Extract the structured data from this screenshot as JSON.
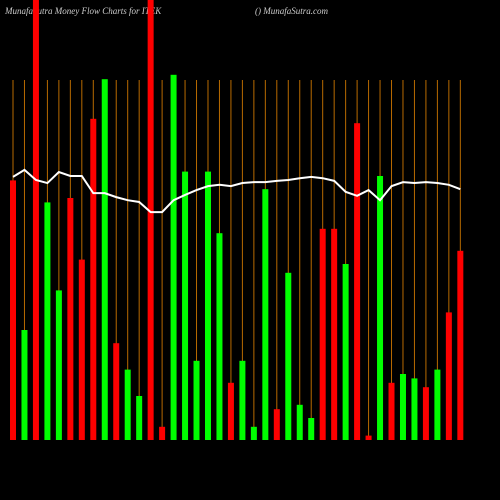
{
  "chart_data": {
    "type": "bar",
    "title": "MunafaSutra  Money Flow  Charts for ITEK",
    "subtitle": "() MunafaSutra.com",
    "ylim": [
      0,
      100
    ],
    "grid": true,
    "grid_color": "#b86a00",
    "line_color": "#ffffff",
    "values": [
      59,
      25,
      100,
      54,
      34,
      55,
      41,
      73,
      82,
      22,
      16,
      10,
      100,
      3,
      83,
      61,
      18,
      61,
      47,
      13,
      18,
      3,
      57,
      7,
      38,
      8,
      5,
      48,
      48,
      40,
      72,
      1,
      60,
      13,
      15,
      14,
      12,
      16,
      29,
      43
    ],
    "colors": [
      "#ff0000",
      "#00ff00",
      "#ff0000",
      "#00ff00",
      "#00ff00",
      "#ff0000",
      "#ff0000",
      "#ff0000",
      "#00ff00",
      "#ff0000",
      "#00ff00",
      "#00ff00",
      "#ff0000",
      "#ff0000",
      "#00ff00",
      "#00ff00",
      "#00ff00",
      "#00ff00",
      "#00ff00",
      "#ff0000",
      "#00ff00",
      "#00ff00",
      "#00ff00",
      "#ff0000",
      "#00ff00",
      "#00ff00",
      "#00ff00",
      "#ff0000",
      "#ff0000",
      "#00ff00",
      "#ff0000",
      "#ff0000",
      "#00ff00",
      "#ff0000",
      "#00ff00",
      "#00ff00",
      "#ff0000",
      "#00ff00",
      "#ff0000",
      "#ff0000"
    ],
    "line": [
      59.8,
      61.4,
      59.1,
      58.4,
      60.9,
      60,
      60,
      56.1,
      56.1,
      55.2,
      54.5,
      54.1,
      51.8,
      51.8,
      54.5,
      55.7,
      56.8,
      57.7,
      58,
      57.7,
      58.4,
      58.6,
      58.6,
      58.9,
      59.1,
      59.5,
      59.8,
      59.5,
      58.9,
      56.4,
      55.5,
      56.8,
      54.5,
      57.7,
      58.6,
      58.4,
      58.6,
      58.4,
      58,
      57
    ]
  }
}
